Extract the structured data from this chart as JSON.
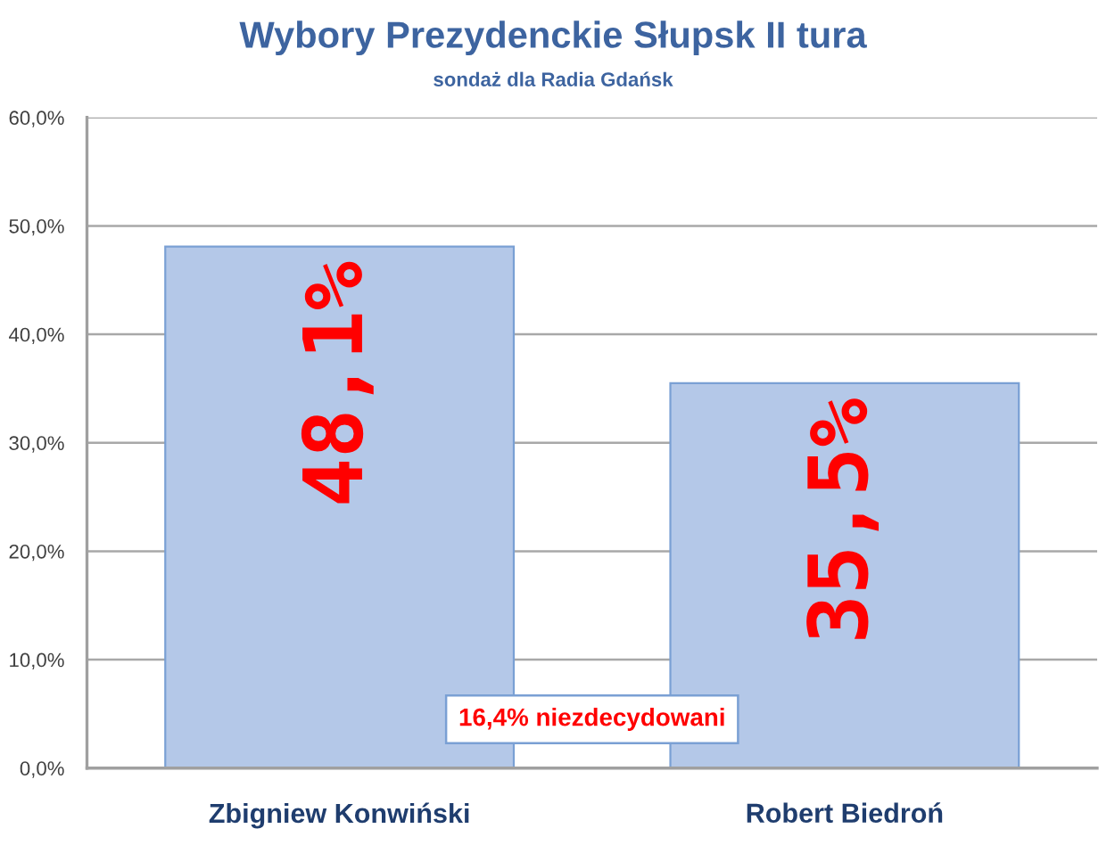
{
  "chart_data": {
    "type": "bar",
    "title": "Wybory Prezydenckie Słupsk II tura",
    "subtitle": "sondaż dla Radia Gdańsk",
    "categories": [
      "Zbigniew Konwiński",
      "Robert Biedroń"
    ],
    "values": [
      48.1,
      35.5
    ],
    "color": "#b4c8e8",
    "value_labels": [
      "48,1%",
      "35,5%"
    ],
    "ylim": [
      0,
      60
    ],
    "yticks": [
      {
        "value": 0,
        "label": "0,0%"
      },
      {
        "value": 10,
        "label": "10,0%"
      },
      {
        "value": 20,
        "label": "20,0%"
      },
      {
        "value": 30,
        "label": "30,0%"
      },
      {
        "value": 40,
        "label": "40,0%"
      },
      {
        "value": 50,
        "label": "50,0%"
      },
      {
        "value": 60,
        "label": "60,0%"
      }
    ],
    "grid": "y",
    "annotations": [
      "16,4% niezdecydowani"
    ]
  }
}
